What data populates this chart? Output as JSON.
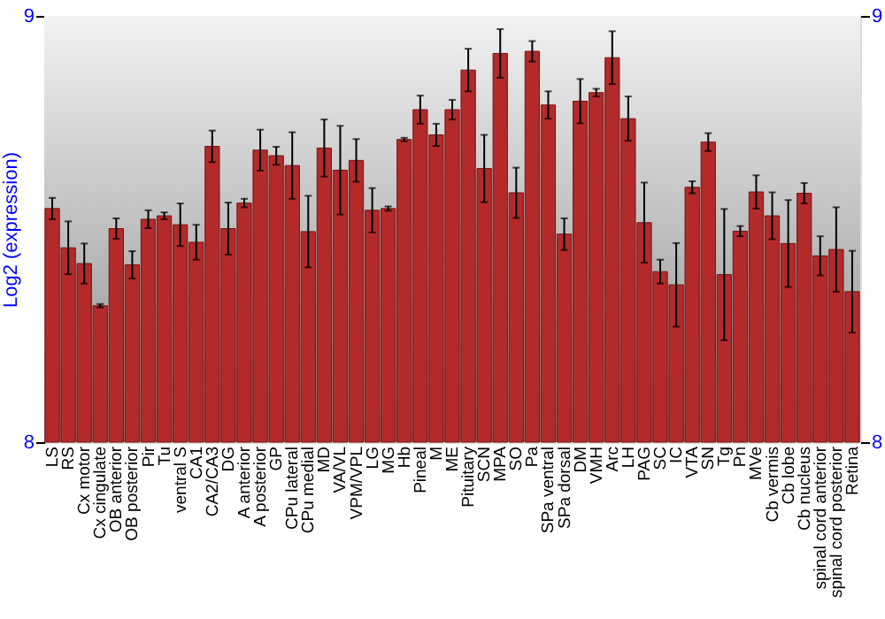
{
  "chart_data": {
    "type": "bar",
    "ylabel": "Log2 (expression)",
    "categories": [
      "LS",
      "RS",
      "Cx motor",
      "Cx cingulate",
      "OB anterior",
      "OB posterior",
      "Pir",
      "Tu",
      "ventral S",
      "CA1",
      "CA2/CA3",
      "DG",
      "A anterior",
      "A posterior",
      "GP",
      "CPu lateral",
      "CPu medial",
      "MD",
      "VA/VL",
      "VPM/VPL",
      "LG",
      "MG",
      "Hb",
      "Pineal",
      "M",
      "ME",
      "Pituitary",
      "SCN",
      "MPA",
      "SO",
      "Pa",
      "SPa ventral",
      "SPa dorsal",
      "DM",
      "VMH",
      "Arc",
      "LH",
      "PAG",
      "SC",
      "IC",
      "VTA",
      "SN",
      "Tg",
      "Pn",
      "MVe",
      "Cb vermis",
      "Cb lobe",
      "Cb nucleus",
      "spinal cord anterior",
      "spinal cord posterior",
      "Retina"
    ],
    "values": [
      8.548,
      8.456,
      8.419,
      8.32,
      8.501,
      8.416,
      8.523,
      8.531,
      8.51,
      8.469,
      8.694,
      8.501,
      8.561,
      8.685,
      8.672,
      8.649,
      8.494,
      8.69,
      8.638,
      8.661,
      8.544,
      8.548,
      8.71,
      8.78,
      8.721,
      8.78,
      8.873,
      8.642,
      8.912,
      8.585,
      8.917,
      8.791,
      8.488,
      8.8,
      8.82,
      8.902,
      8.759,
      8.515,
      8.4,
      8.369,
      8.598,
      8.704,
      8.393,
      8.495,
      8.587,
      8.531,
      8.466,
      8.584,
      8.437,
      8.452,
      8.353
    ],
    "errors": [
      0.025,
      0.062,
      0.047,
      0.004,
      0.024,
      0.032,
      0.021,
      0.008,
      0.05,
      0.041,
      0.037,
      0.061,
      0.01,
      0.048,
      0.021,
      0.078,
      0.084,
      0.067,
      0.104,
      0.05,
      0.052,
      0.005,
      0.004,
      0.033,
      0.026,
      0.023,
      0.05,
      0.079,
      0.057,
      0.059,
      0.024,
      0.032,
      0.037,
      0.052,
      0.009,
      0.062,
      0.052,
      0.094,
      0.028,
      0.098,
      0.014,
      0.021,
      0.154,
      0.012,
      0.039,
      0.055,
      0.102,
      0.024,
      0.046,
      0.099,
      0.096
    ],
    "color": "#b22a2a",
    "ylim": [
      8,
      9
    ],
    "yticks": [
      8,
      9
    ],
    "y2lim": [
      8,
      9
    ],
    "y2ticks": [
      8,
      9
    ]
  }
}
